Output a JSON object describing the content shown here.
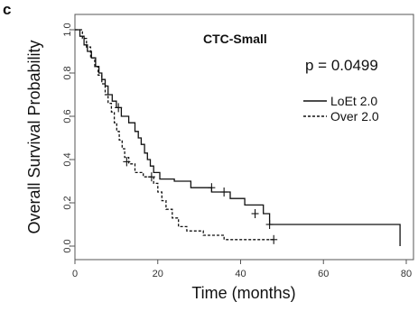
{
  "panel_letter": "c",
  "chart_data": {
    "type": "line",
    "title": "CTC-Small",
    "annotation": "p = 0.0499",
    "xlabel": "Time (months)",
    "ylabel": "Overall Survival Probability",
    "xlim": [
      0,
      80
    ],
    "ylim": [
      0,
      1.0
    ],
    "xticks": [
      "0",
      "20",
      "40",
      "60",
      "80"
    ],
    "yticks": [
      "0.0",
      "0.2",
      "0.4",
      "0.6",
      "0.8",
      "1.0"
    ],
    "grid": false,
    "legend_position": "top-right",
    "series": [
      {
        "name": "LoEt 2.0",
        "style": "solid",
        "color": "#111111",
        "steps": [
          [
            0,
            1.0
          ],
          [
            1.2,
            0.97
          ],
          [
            2.2,
            0.93
          ],
          [
            3,
            0.9
          ],
          [
            4,
            0.87
          ],
          [
            5,
            0.83
          ],
          [
            5.8,
            0.8
          ],
          [
            6.5,
            0.77
          ],
          [
            7.3,
            0.74
          ],
          [
            8,
            0.7
          ],
          [
            9,
            0.67
          ],
          [
            10,
            0.64
          ],
          [
            11.2,
            0.6
          ],
          [
            13,
            0.57
          ],
          [
            14.5,
            0.53
          ],
          [
            15.3,
            0.5
          ],
          [
            16,
            0.47
          ],
          [
            16.8,
            0.43
          ],
          [
            17.5,
            0.4
          ],
          [
            18.2,
            0.37
          ],
          [
            19,
            0.34
          ],
          [
            20.5,
            0.31
          ],
          [
            24,
            0.3
          ],
          [
            28,
            0.27
          ],
          [
            33,
            0.25
          ],
          [
            37.5,
            0.22
          ],
          [
            41,
            0.19
          ],
          [
            45.5,
            0.15
          ],
          [
            47,
            0.1
          ],
          [
            78.5,
            0.0
          ]
        ],
        "end": 78.5,
        "censored": [
          [
            10.5,
            0.64
          ],
          [
            33,
            0.27
          ],
          [
            36,
            0.25
          ],
          [
            43.5,
            0.15
          ],
          [
            47,
            0.1
          ]
        ]
      },
      {
        "name": "Over 2.0",
        "style": "dashed",
        "color": "#111111",
        "steps": [
          [
            0,
            1.0
          ],
          [
            1.8,
            0.96
          ],
          [
            2.8,
            0.92
          ],
          [
            3.8,
            0.87
          ],
          [
            4.8,
            0.83
          ],
          [
            5.6,
            0.79
          ],
          [
            6.5,
            0.75
          ],
          [
            7.3,
            0.7
          ],
          [
            8,
            0.66
          ],
          [
            8.8,
            0.62
          ],
          [
            9.5,
            0.57
          ],
          [
            10.1,
            0.53
          ],
          [
            10.7,
            0.49
          ],
          [
            11.4,
            0.45
          ],
          [
            12,
            0.41
          ],
          [
            13,
            0.38
          ],
          [
            14.5,
            0.34
          ],
          [
            16.5,
            0.32
          ],
          [
            19,
            0.29
          ],
          [
            20,
            0.25
          ],
          [
            21,
            0.21
          ],
          [
            22,
            0.17
          ],
          [
            23.5,
            0.13
          ],
          [
            25,
            0.09
          ],
          [
            27,
            0.07
          ],
          [
            31,
            0.05
          ],
          [
            36,
            0.03
          ]
        ],
        "end": 48,
        "censored": [
          [
            12.5,
            0.39
          ],
          [
            18.5,
            0.32
          ],
          [
            48,
            0.03
          ]
        ]
      }
    ]
  }
}
